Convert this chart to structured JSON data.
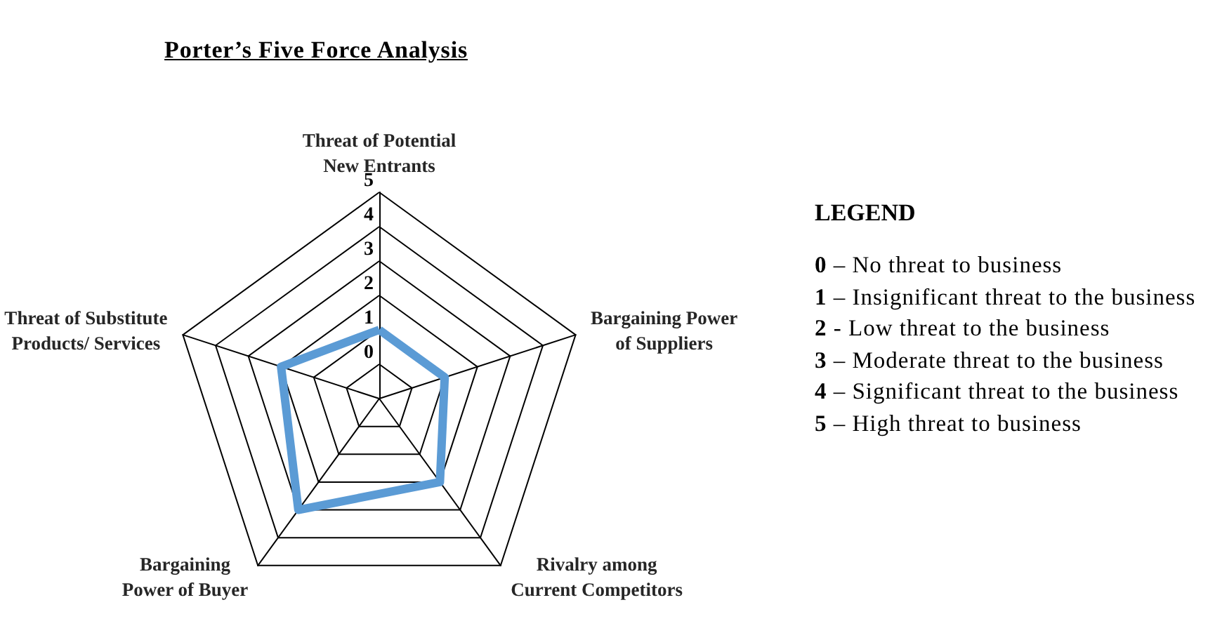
{
  "chart_data": {
    "type": "radar",
    "title": "Porter’s Five Force Analysis",
    "categories": [
      "Threat of Potential New Entrants",
      "Bargaining Power of Suppliers",
      "Rivalry among Current Competitors",
      "Bargaining Power of Buyer",
      "Threat of Substitute Products/ Services"
    ],
    "series": [
      {
        "color": "#5b9bd5",
        "values": [
          1,
          1,
          2,
          3,
          2
        ]
      }
    ],
    "ylim": [
      -1,
      5
    ],
    "yticks": [
      0,
      1,
      2,
      3,
      4,
      5
    ],
    "grid": true,
    "annotations": [
      "LEGEND",
      "0 – No threat to business",
      "1 – Insignificant threat to the business",
      "2 - Low threat to the business",
      "3 – Moderate threat to the business",
      "4 – Significant threat to the business",
      "5 – High threat to business"
    ]
  }
}
